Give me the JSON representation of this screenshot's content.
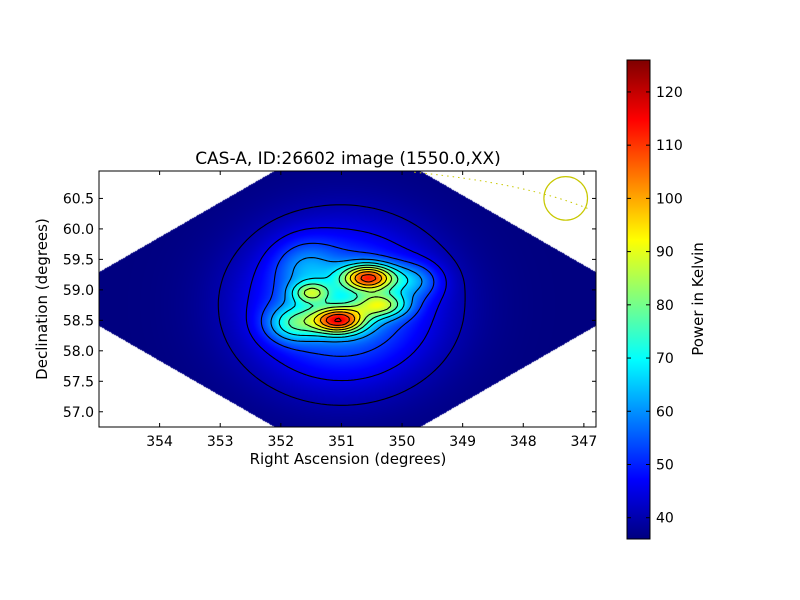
{
  "chart_data": {
    "type": "heatmap",
    "title": "CAS-A, ID:26602 image (1550.0,XX)",
    "xlabel": "Right Ascension (degrees)",
    "ylabel": "Declination (degrees)",
    "xlim": [
      355.0,
      346.8
    ],
    "ylim": [
      56.75,
      60.95
    ],
    "x_ticks": [
      "354",
      "353",
      "352",
      "351",
      "350",
      "349",
      "348",
      "347"
    ],
    "x_tick_values": [
      354,
      353,
      352,
      351,
      350,
      349,
      348,
      347
    ],
    "y_ticks": [
      "57.0",
      "57.5",
      "58.0",
      "58.5",
      "59.0",
      "59.5",
      "60.0",
      "60.5"
    ],
    "y_tick_values": [
      57.0,
      57.5,
      58.0,
      58.5,
      59.0,
      59.5,
      60.0,
      60.5
    ],
    "colorbar": {
      "label": "Power in Kelvin",
      "range": [
        36,
        126
      ],
      "ticks": [
        "40",
        "50",
        "60",
        "70",
        "80",
        "90",
        "100",
        "110",
        "120"
      ],
      "tick_values": [
        40,
        50,
        60,
        70,
        80,
        90,
        100,
        110,
        120
      ],
      "colormap": "jet"
    },
    "background_level": 36,
    "sources": [
      {
        "ra": 351.0,
        "dec": 58.75,
        "peak": 26,
        "sigma_ra": 1.05,
        "sigma_dec": 0.85
      },
      {
        "ra": 350.55,
        "dec": 59.2,
        "peak": 55,
        "sigma_ra": 0.3,
        "sigma_dec": 0.15
      },
      {
        "ra": 351.05,
        "dec": 58.5,
        "peak": 55,
        "sigma_ra": 0.3,
        "sigma_dec": 0.15
      },
      {
        "ra": 351.5,
        "dec": 58.95,
        "peak": 26,
        "sigma_ra": 0.22,
        "sigma_dec": 0.12
      },
      {
        "ra": 350.35,
        "dec": 58.75,
        "peak": 32,
        "sigma_ra": 0.3,
        "sigma_dec": 0.14
      },
      {
        "ra": 351.8,
        "dec": 58.45,
        "peak": 22,
        "sigma_ra": 0.3,
        "sigma_dec": 0.2
      },
      {
        "ra": 349.8,
        "dec": 59.15,
        "peak": 14,
        "sigma_ra": 0.3,
        "sigma_dec": 0.2
      },
      {
        "ra": 351.6,
        "dec": 59.4,
        "peak": 10,
        "sigma_ra": 0.35,
        "sigma_dec": 0.3
      }
    ],
    "contour_levels": [
      40,
      45,
      52,
      60,
      68,
      76,
      84,
      92,
      100,
      108,
      116,
      122
    ],
    "beam": {
      "ra": 347.3,
      "dec": 60.5,
      "radius_deg": 0.36,
      "color": "#c8c800"
    },
    "colors": {
      "axes_background": "#ffffff",
      "contour": "#000000",
      "beam": "#c8c800"
    }
  }
}
